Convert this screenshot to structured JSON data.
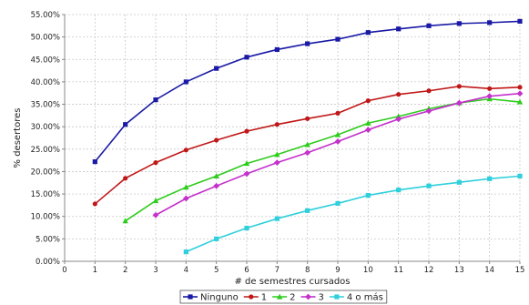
{
  "chart_data": {
    "type": "line",
    "title": "",
    "xlabel": "# de semestres cursados",
    "ylabel": "% desertores",
    "xlim": [
      0,
      15
    ],
    "ylim": [
      0,
      55
    ],
    "x_ticks": [
      "0",
      "1",
      "2",
      "3",
      "4",
      "5",
      "6",
      "7",
      "8",
      "9",
      "10",
      "11",
      "12",
      "13",
      "14",
      "15"
    ],
    "y_ticks": [
      0,
      5,
      10,
      15,
      20,
      25,
      30,
      35,
      40,
      45,
      50,
      55
    ],
    "y_tick_labels": [
      "0.00%",
      "5.00%",
      "10.00%",
      "15.00%",
      "20.00%",
      "25.00%",
      "30.00%",
      "35.00%",
      "40.00%",
      "45.00%",
      "50.00%",
      "55.00%"
    ],
    "grid": true,
    "legend_position": "bottom",
    "series": [
      {
        "name": "Ninguno",
        "color": "#1a1aa6",
        "marker": "square",
        "x": [
          1,
          2,
          3,
          4,
          5,
          6,
          7,
          8,
          9,
          10,
          11,
          12,
          13,
          14,
          15
        ],
        "values": [
          22.2,
          30.5,
          36.0,
          40.0,
          43.0,
          45.5,
          47.2,
          48.5,
          49.5,
          51.0,
          51.8,
          52.5,
          53.0,
          53.2,
          53.5
        ]
      },
      {
        "name": "1",
        "color": "#c01818",
        "marker": "circle",
        "x": [
          1,
          2,
          3,
          4,
          5,
          6,
          7,
          8,
          9,
          10,
          11,
          12,
          13,
          14,
          15
        ],
        "values": [
          12.8,
          18.5,
          22.0,
          24.8,
          27.0,
          29.0,
          30.5,
          31.8,
          33.0,
          35.8,
          37.2,
          38.0,
          39.0,
          38.5,
          38.8
        ]
      },
      {
        "name": "2",
        "color": "#2ecc1c",
        "marker": "triangle",
        "x": [
          2,
          3,
          4,
          5,
          6,
          7,
          8,
          9,
          10,
          11,
          12,
          13,
          14,
          15
        ],
        "values": [
          9.0,
          13.5,
          16.5,
          19.0,
          21.8,
          23.8,
          26.0,
          28.2,
          30.8,
          32.3,
          34.0,
          35.3,
          36.2,
          35.5
        ]
      },
      {
        "name": "3",
        "color": "#c431cc",
        "marker": "diamond",
        "x": [
          3,
          4,
          5,
          6,
          7,
          8,
          9,
          10,
          11,
          12,
          13,
          14,
          15
        ],
        "values": [
          10.3,
          14.0,
          16.8,
          19.5,
          22.0,
          24.2,
          26.7,
          29.3,
          31.7,
          33.5,
          35.3,
          36.8,
          37.4
        ]
      },
      {
        "name": "4 o más",
        "color": "#2fd0dc",
        "marker": "square",
        "x": [
          4,
          5,
          6,
          7,
          8,
          9,
          10,
          11,
          12,
          13,
          14,
          15
        ],
        "values": [
          2.1,
          5.0,
          7.4,
          9.5,
          11.3,
          12.9,
          14.7,
          15.9,
          16.8,
          17.6,
          18.4,
          19.0
        ]
      }
    ]
  }
}
